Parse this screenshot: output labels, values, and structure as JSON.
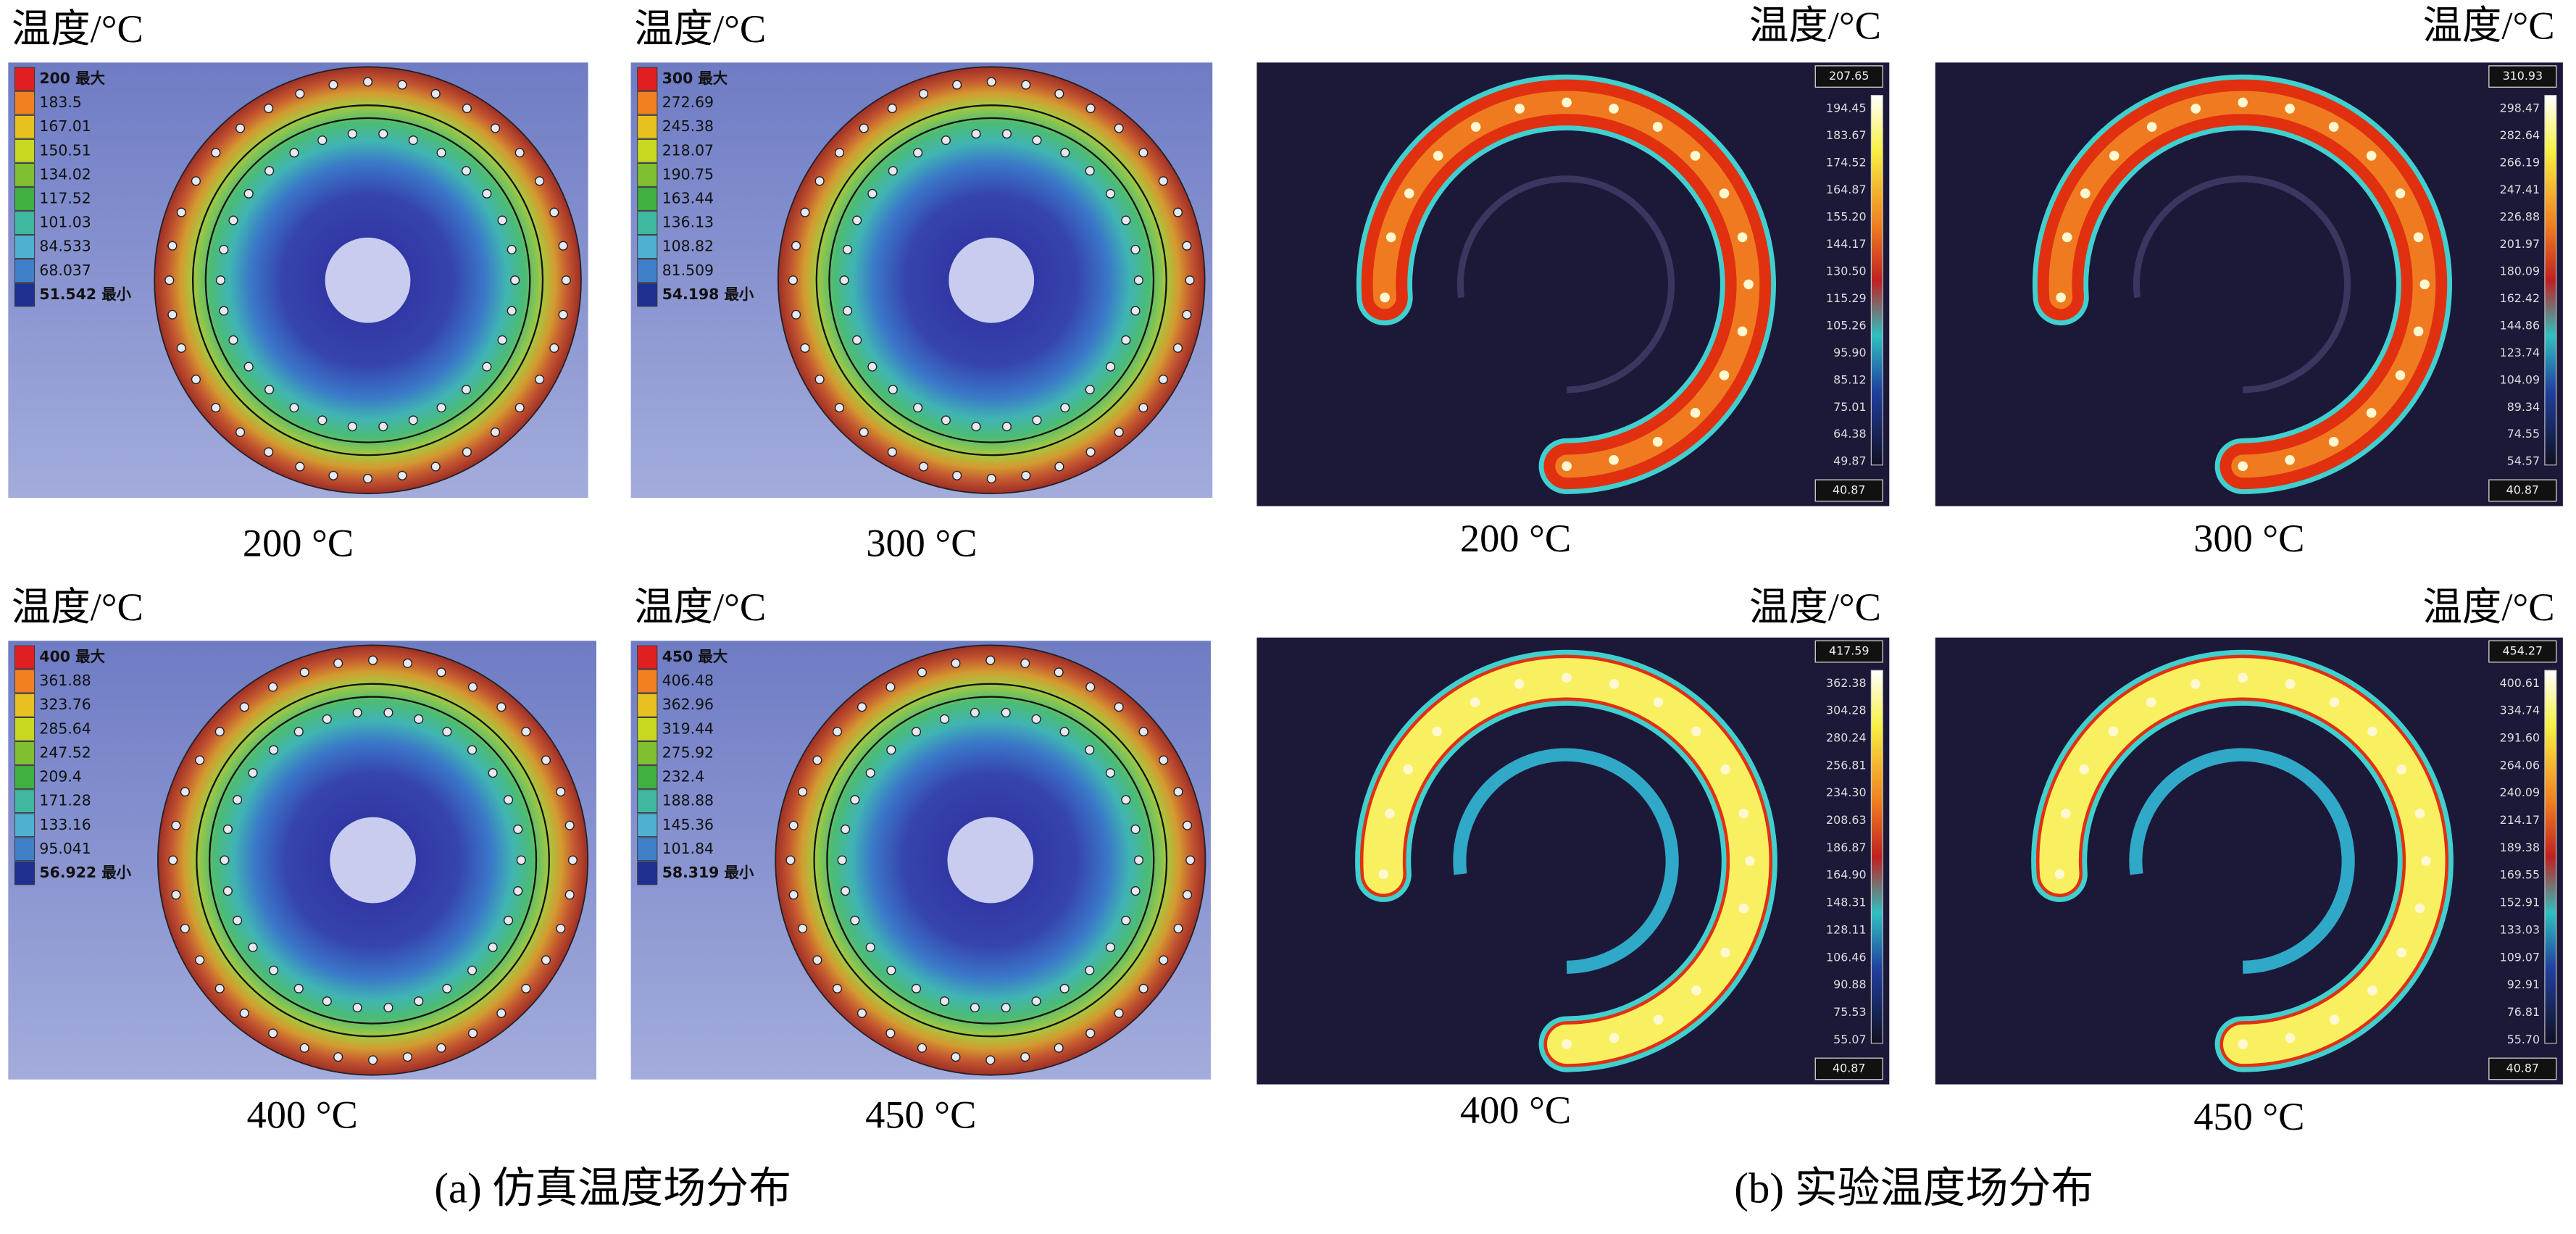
{
  "simulation": {
    "caption": "(a) 仿真温度场分布",
    "panels": [
      {
        "unit_title": "温度/°C",
        "legend": [
          "200 最大",
          "183.5",
          "167.01",
          "150.51",
          "134.02",
          "117.52",
          "101.03",
          "84.533",
          "68.037",
          "51.542 最小"
        ],
        "caption": "200 °C"
      },
      {
        "unit_title": "温度/°C",
        "legend": [
          "300 最大",
          "272.69",
          "245.38",
          "218.07",
          "190.75",
          "163.44",
          "136.13",
          "108.82",
          "81.509",
          "54.198 最小"
        ],
        "caption": "300 °C"
      },
      {
        "unit_title": "温度/°C",
        "legend": [
          "400 最大",
          "361.88",
          "323.76",
          "285.64",
          "247.52",
          "209.4",
          "171.28",
          "133.16",
          "95.041",
          "56.922 最小"
        ],
        "caption": "400 °C"
      },
      {
        "unit_title": "温度/°C",
        "legend": [
          "450 最大",
          "406.48",
          "362.96",
          "319.44",
          "275.92",
          "232.4",
          "188.88",
          "145.36",
          "101.84",
          "58.319 最小"
        ],
        "caption": "450 °C"
      }
    ]
  },
  "experiment": {
    "caption": "(b) 实验温度场分布",
    "panels": [
      {
        "unit_title": "温度/°C",
        "max": "207.65",
        "scale": [
          "194.45",
          "183.67",
          "174.52",
          "164.87",
          "155.20",
          "144.17",
          "130.50",
          "115.29",
          "105.26",
          "95.90",
          "85.12",
          "75.01",
          "64.38",
          "49.87"
        ],
        "min": "40.87",
        "caption": "200 °C"
      },
      {
        "unit_title": "温度/°C",
        "max": "310.93",
        "scale": [
          "298.47",
          "282.64",
          "266.19",
          "247.41",
          "226.88",
          "201.97",
          "180.09",
          "162.42",
          "144.86",
          "123.74",
          "104.09",
          "89.34",
          "74.55",
          "54.57"
        ],
        "min": "40.87",
        "caption": "300 °C"
      },
      {
        "unit_title": "温度/°C",
        "max": "417.59",
        "scale": [
          "362.38",
          "304.28",
          "280.24",
          "256.81",
          "234.30",
          "208.63",
          "186.87",
          "164.90",
          "148.31",
          "128.11",
          "106.46",
          "90.88",
          "75.53",
          "55.07"
        ],
        "min": "40.87",
        "caption": "400 °C"
      },
      {
        "unit_title": "温度/°C",
        "max": "454.27",
        "scale": [
          "400.61",
          "334.74",
          "291.60",
          "264.06",
          "240.09",
          "214.17",
          "189.38",
          "169.55",
          "152.91",
          "133.03",
          "109.07",
          "92.91",
          "76.81",
          "55.70"
        ],
        "min": "40.87",
        "caption": "450 °C"
      }
    ]
  }
}
